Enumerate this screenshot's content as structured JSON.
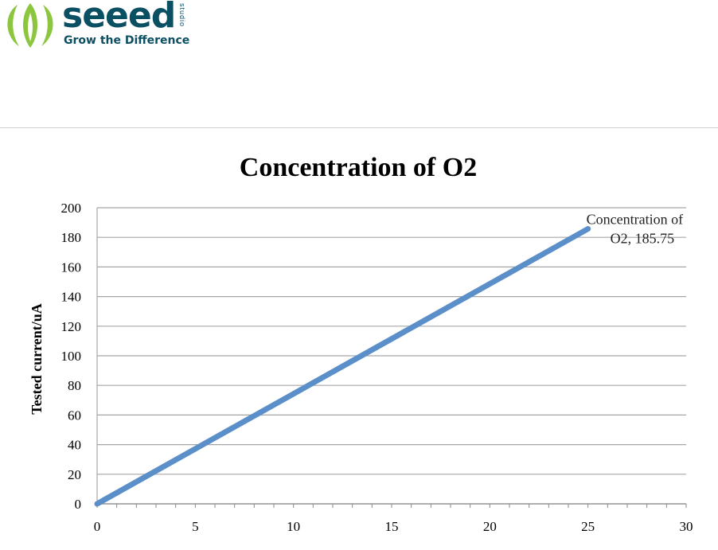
{
  "logo": {
    "wordmark": "seeed",
    "studio": "studio",
    "tagline": "Grow the Difference",
    "brand_color": "#0b4f63",
    "leaf_color": "#8cc63f"
  },
  "chart_data": {
    "type": "line",
    "title": "Concentration of O2",
    "xlabel": "",
    "ylabel": "Tested current/uA",
    "xlim": [
      0,
      30
    ],
    "ylim": [
      0,
      200
    ],
    "x_ticks": [
      0,
      5,
      10,
      15,
      20,
      25,
      30
    ],
    "y_ticks": [
      0,
      20,
      40,
      60,
      80,
      100,
      120,
      140,
      160,
      180,
      200
    ],
    "grid": true,
    "legend": "none",
    "series": [
      {
        "color": "#5b8fc9",
        "x": [
          0,
          25
        ],
        "y": [
          0,
          185.75
        ]
      }
    ],
    "annotations": [
      {
        "x": 25,
        "y": 185.75,
        "line1": "Concentration of",
        "line2": "O2, 185.75"
      }
    ]
  }
}
